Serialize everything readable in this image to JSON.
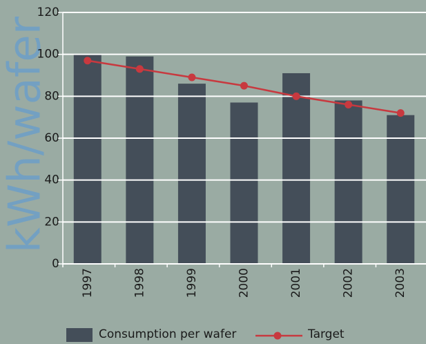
{
  "chart_data": {
    "type": "bar_line",
    "y_label": "kWh/wafer",
    "categories": [
      "1997",
      "1998",
      "1999",
      "2000",
      "2001",
      "2002",
      "2003"
    ],
    "series": [
      {
        "name": "Consumption per wafer",
        "type": "bar",
        "color": "#444e59",
        "values": [
          100,
          99,
          86,
          77,
          91,
          78,
          71
        ]
      },
      {
        "name": "Target",
        "type": "line",
        "color": "#c8393f",
        "values": [
          97,
          93,
          89,
          85,
          80,
          76,
          72
        ]
      }
    ],
    "ylim": [
      0,
      120
    ],
    "yticks": [
      0,
      20,
      40,
      60,
      80,
      100,
      120
    ],
    "grid": true
  }
}
